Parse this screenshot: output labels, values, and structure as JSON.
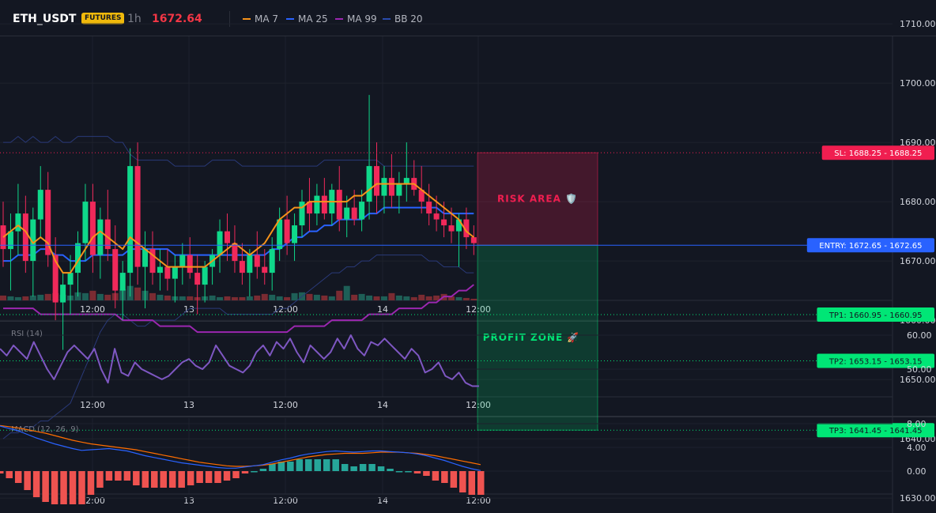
{
  "header": {
    "symbol": "ETH_USDT",
    "badge": "FUTURES",
    "timeframe": "1h",
    "price": "1672.64",
    "indicators": [
      {
        "label": "MA 7",
        "color": "#f7931a"
      },
      {
        "label": "MA 25",
        "color": "#2962ff"
      },
      {
        "label": "MA 99",
        "color": "#9c27b0"
      },
      {
        "label": "BB 20",
        "color": "#2a4bad"
      }
    ]
  },
  "colors": {
    "background": "#131722",
    "up": "#26a69a",
    "up_bright": "#00e676",
    "down": "#ef5350",
    "down_bright": "#ff1e56",
    "sl": "#f01e50",
    "entry": "#2962ff",
    "tp": "#00e676",
    "rsi": "#7e57c2",
    "macd": "#2962ff",
    "signal": "#ff6d00"
  },
  "x_axis_labels": [
    "12:00",
    "13",
    "12:00",
    "14",
    "12:00"
  ],
  "main_pane": {
    "y_ticks": [
      "1710.00",
      "1700.00",
      "1690.00",
      "1680.00",
      "1670.00",
      "1660.00",
      "1650.00",
      "1640.00",
      "1630.00"
    ],
    "levels": [
      {
        "id": "sl",
        "label": "SL: 1688.25 - 1688.25",
        "value": 1688.25
      },
      {
        "id": "entry",
        "label": "ENTRY: 1672.65 - 1672.65",
        "value": 1672.65
      },
      {
        "id": "tp1",
        "label": "TP1: 1660.95 - 1660.95",
        "value": 1660.95
      },
      {
        "id": "tp2",
        "label": "TP2: 1653.15 - 1653.15",
        "value": 1653.15
      },
      {
        "id": "tp3",
        "label": "TP3: 1641.45 - 1641.45",
        "value": 1641.45
      }
    ],
    "risk_label": "RISK AREA 🛡️",
    "profit_label": "PROFIT ZONE 🚀"
  },
  "rsi_pane": {
    "title": "RSI (14)",
    "y_ticks": [
      "60.00",
      "50.00"
    ],
    "values": [
      56,
      54,
      57,
      55,
      53,
      58,
      54,
      50,
      47,
      51,
      55,
      57,
      55,
      53,
      56,
      50,
      46,
      56,
      49,
      48,
      52,
      50,
      49,
      48,
      47,
      48,
      50,
      52,
      53,
      51,
      50,
      52,
      57,
      54,
      51,
      50,
      49,
      51,
      55,
      57,
      54,
      58,
      56,
      59,
      55,
      52,
      57,
      55,
      53,
      55,
      59,
      56,
      60,
      56,
      54,
      58,
      57,
      59,
      57,
      55,
      53,
      56,
      54,
      49,
      50,
      52,
      48,
      47,
      49,
      46,
      45,
      45
    ]
  },
  "macd_pane": {
    "title": "MACD (12, 26, 9)",
    "y_ticks": [
      "8.00",
      "4.00",
      "0.00"
    ],
    "macd": [
      7.6,
      7.2,
      6.8,
      6.2,
      5.6,
      5.1,
      4.6,
      4.2,
      3.8,
      3.5,
      3.6,
      3.7,
      3.8,
      3.6,
      3.4,
      3.0,
      2.6,
      2.3,
      2.0,
      1.7,
      1.4,
      1.2,
      1.0,
      0.8,
      0.6,
      0.5,
      0.5,
      0.7,
      0.9,
      1.1,
      1.5,
      1.9,
      2.2,
      2.6,
      2.9,
      3.1,
      3.3,
      3.4,
      3.3,
      3.2,
      3.3,
      3.4,
      3.4,
      3.3,
      3.2,
      3.1,
      2.9,
      2.6,
      2.2,
      1.8,
      1.3,
      0.8,
      0.4,
      0.1
    ],
    "signal": [
      7.7,
      7.5,
      7.3,
      7.0,
      6.7,
      6.4,
      6.0,
      5.6,
      5.2,
      4.9,
      4.6,
      4.4,
      4.2,
      4.0,
      3.8,
      3.6,
      3.3,
      3.0,
      2.7,
      2.4,
      2.1,
      1.8,
      1.5,
      1.3,
      1.1,
      0.9,
      0.8,
      0.8,
      0.9,
      1.0,
      1.2,
      1.5,
      1.8,
      2.1,
      2.4,
      2.6,
      2.8,
      2.9,
      3.0,
      3.0,
      3.0,
      3.1,
      3.2,
      3.2,
      3.2,
      3.1,
      3.0,
      2.8,
      2.6,
      2.3,
      2.0,
      1.7,
      1.4,
      1.1
    ]
  },
  "chart_data": {
    "type": "candlestick",
    "y_unit": "USDT",
    "ylim": [
      1628,
      1714
    ],
    "candles": [
      [
        1676,
        1680,
        1669,
        1672
      ],
      [
        1672,
        1678,
        1665,
        1675
      ],
      [
        1675,
        1683,
        1671,
        1678
      ],
      [
        1678,
        1681,
        1668,
        1670
      ],
      [
        1670,
        1679,
        1664,
        1677
      ],
      [
        1677,
        1686,
        1674,
        1682
      ],
      [
        1682,
        1685,
        1669,
        1671
      ],
      [
        1671,
        1674,
        1660,
        1663
      ],
      [
        1663,
        1668,
        1655,
        1666
      ],
      [
        1666,
        1671,
        1661,
        1668
      ],
      [
        1668,
        1675,
        1664,
        1673
      ],
      [
        1673,
        1683,
        1670,
        1680
      ],
      [
        1680,
        1683,
        1668,
        1671
      ],
      [
        1671,
        1679,
        1667,
        1677
      ],
      [
        1677,
        1682,
        1670,
        1672
      ],
      [
        1672,
        1676,
        1662,
        1665
      ],
      [
        1665,
        1670,
        1660,
        1668
      ],
      [
        1668,
        1689,
        1664,
        1686
      ],
      [
        1686,
        1690,
        1666,
        1669
      ],
      [
        1669,
        1675,
        1662,
        1672
      ],
      [
        1672,
        1675,
        1666,
        1668
      ],
      [
        1668,
        1672,
        1665,
        1669
      ],
      [
        1669,
        1672,
        1665,
        1667
      ],
      [
        1667,
        1671,
        1663,
        1669
      ],
      [
        1669,
        1673,
        1666,
        1671
      ],
      [
        1671,
        1674,
        1667,
        1668
      ],
      [
        1668,
        1671,
        1661,
        1666
      ],
      [
        1666,
        1670,
        1663,
        1669
      ],
      [
        1669,
        1672,
        1666,
        1671
      ],
      [
        1671,
        1677,
        1668,
        1675
      ],
      [
        1675,
        1678,
        1670,
        1673
      ],
      [
        1673,
        1676,
        1668,
        1670
      ],
      [
        1670,
        1673,
        1666,
        1668
      ],
      [
        1668,
        1672,
        1664,
        1671
      ],
      [
        1671,
        1675,
        1667,
        1669
      ],
      [
        1669,
        1672,
        1666,
        1668
      ],
      [
        1668,
        1674,
        1665,
        1672
      ],
      [
        1672,
        1679,
        1670,
        1677
      ],
      [
        1677,
        1681,
        1671,
        1673
      ],
      [
        1673,
        1678,
        1670,
        1676
      ],
      [
        1676,
        1682,
        1674,
        1680
      ],
      [
        1680,
        1684,
        1675,
        1678
      ],
      [
        1678,
        1683,
        1676,
        1681
      ],
      [
        1681,
        1684,
        1677,
        1678
      ],
      [
        1678,
        1683,
        1676,
        1682
      ],
      [
        1682,
        1686,
        1675,
        1677
      ],
      [
        1677,
        1681,
        1674,
        1679
      ],
      [
        1679,
        1682,
        1676,
        1677
      ],
      [
        1677,
        1682,
        1675,
        1680
      ],
      [
        1680,
        1698,
        1677,
        1686
      ],
      [
        1686,
        1690,
        1678,
        1681
      ],
      [
        1681,
        1686,
        1678,
        1684
      ],
      [
        1684,
        1688,
        1679,
        1681
      ],
      [
        1681,
        1685,
        1678,
        1683
      ],
      [
        1683,
        1690,
        1680,
        1684
      ],
      [
        1684,
        1687,
        1681,
        1682
      ],
      [
        1682,
        1686,
        1678,
        1680
      ],
      [
        1680,
        1683,
        1676,
        1678
      ],
      [
        1678,
        1681,
        1675,
        1677
      ],
      [
        1677,
        1680,
        1674,
        1676
      ],
      [
        1676,
        1679,
        1673,
        1675
      ],
      [
        1675,
        1678,
        1669,
        1677
      ],
      [
        1677,
        1679,
        1672,
        1674
      ],
      [
        1674,
        1676,
        1671,
        1673
      ]
    ],
    "volume_max": 65,
    "volumes": [
      6,
      5,
      4,
      5,
      6,
      7,
      8,
      9,
      7,
      6,
      10,
      9,
      12,
      8,
      7,
      9,
      14,
      18,
      16,
      12,
      9,
      7,
      6,
      5,
      5,
      5,
      4,
      5,
      6,
      4,
      5,
      4,
      4,
      5,
      6,
      8,
      7,
      5,
      4,
      9,
      10,
      8,
      7,
      6,
      5,
      12,
      18,
      7,
      8,
      6,
      5,
      5,
      9,
      6,
      5,
      4,
      7,
      5,
      6,
      8,
      5,
      4,
      3,
      2
    ],
    "ma7": [
      1674,
      1675,
      1676,
      1675,
      1673,
      1674,
      1673,
      1670,
      1668,
      1668,
      1670,
      1672,
      1674,
      1675,
      1674,
      1673,
      1672,
      1674,
      1673,
      1672,
      1671,
      1670,
      1669,
      1669,
      1669,
      1669,
      1669,
      1669,
      1670,
      1671,
      1672,
      1673,
      1672,
      1671,
      1672,
      1673,
      1675,
      1677,
      1678,
      1679,
      1679,
      1680,
      1680,
      1680,
      1680,
      1680,
      1680,
      1681,
      1681,
      1682,
      1683,
      1683,
      1683,
      1683,
      1683,
      1683,
      1682,
      1681,
      1680,
      1679,
      1678,
      1677,
      1675,
      1674
    ],
    "ma25": [
      1670,
      1670,
      1671,
      1671,
      1671,
      1672,
      1672,
      1671,
      1671,
      1670,
      1670,
      1670,
      1671,
      1671,
      1671,
      1671,
      1671,
      1672,
      1672,
      1672,
      1672,
      1672,
      1672,
      1671,
      1671,
      1671,
      1671,
      1671,
      1671,
      1671,
      1671,
      1671,
      1671,
      1671,
      1671,
      1671,
      1672,
      1672,
      1673,
      1674,
      1674,
      1675,
      1675,
      1676,
      1676,
      1677,
      1677,
      1677,
      1677,
      1678,
      1678,
      1679,
      1679,
      1679,
      1679,
      1679,
      1679,
      1679,
      1679,
      1678,
      1678,
      1678,
      1678,
      1678
    ],
    "ma99": [
      1662,
      1662,
      1662,
      1662,
      1662,
      1661,
      1661,
      1661,
      1661,
      1661,
      1661,
      1661,
      1661,
      1661,
      1661,
      1661,
      1660,
      1660,
      1660,
      1660,
      1660,
      1659,
      1659,
      1659,
      1659,
      1659,
      1658,
      1658,
      1658,
      1658,
      1658,
      1658,
      1658,
      1658,
      1658,
      1658,
      1658,
      1658,
      1658,
      1659,
      1659,
      1659,
      1659,
      1659,
      1660,
      1660,
      1660,
      1660,
      1660,
      1661,
      1661,
      1661,
      1661,
      1662,
      1662,
      1662,
      1662,
      1663,
      1663,
      1664,
      1664,
      1665,
      1665,
      1666
    ],
    "bb_upper": [
      1690,
      1690,
      1691,
      1690,
      1691,
      1690,
      1690,
      1691,
      1690,
      1690,
      1691,
      1691,
      1691,
      1691,
      1691,
      1690,
      1690,
      1688,
      1687,
      1687,
      1687,
      1687,
      1687,
      1686,
      1686,
      1686,
      1686,
      1686,
      1687,
      1687,
      1687,
      1687,
      1686,
      1686,
      1686,
      1686,
      1686,
      1686,
      1686,
      1686,
      1686,
      1686,
      1686,
      1687,
      1687,
      1687,
      1687,
      1687,
      1687,
      1687,
      1687,
      1686,
      1686,
      1686,
      1686,
      1686,
      1686,
      1686,
      1686,
      1686,
      1686,
      1686,
      1686,
      1686
    ],
    "bb_lower": [
      1640,
      1641,
      1641,
      1642,
      1642,
      1643,
      1643,
      1644,
      1645,
      1646,
      1649,
      1652,
      1655,
      1658,
      1660,
      1661,
      1661,
      1660,
      1659,
      1659,
      1660,
      1660,
      1660,
      1660,
      1661,
      1662,
      1662,
      1662,
      1662,
      1662,
      1661,
      1661,
      1661,
      1661,
      1661,
      1661,
      1661,
      1662,
      1662,
      1663,
      1664,
      1665,
      1666,
      1667,
      1668,
      1668,
      1669,
      1669,
      1670,
      1670,
      1671,
      1671,
      1671,
      1671,
      1671,
      1671,
      1671,
      1670,
      1670,
      1669,
      1669,
      1669,
      1668,
      1668
    ]
  }
}
